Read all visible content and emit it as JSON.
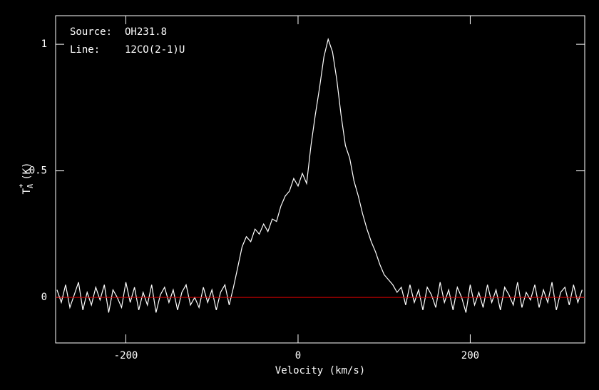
{
  "chart_data": {
    "type": "line",
    "annotations": {
      "source_label": "Source:",
      "source": "OH231.8",
      "line_label": "Line:",
      "line": "12CO(2-1)U"
    },
    "xlabel": "Velocity (km/s)",
    "ylabel": {
      "main": "T",
      "superscript": "*",
      "subscript": "A",
      "unit": "(K)"
    },
    "xlim": [
      -281.6,
      333
    ],
    "ylim": [
      -0.18,
      1.113
    ],
    "xticks": [
      -200,
      0,
      200
    ],
    "yticks": [
      0,
      0.5,
      1
    ],
    "baseline": 0,
    "baseline_color": "#e00000",
    "x": [
      -280,
      -275,
      -270,
      -265,
      -260,
      -255,
      -250,
      -245,
      -240,
      -235,
      -230,
      -225,
      -220,
      -215,
      -210,
      -205,
      -200,
      -195,
      -190,
      -185,
      -180,
      -175,
      -170,
      -165,
      -160,
      -155,
      -150,
      -145,
      -140,
      -135,
      -130,
      -125,
      -120,
      -115,
      -110,
      -105,
      -100,
      -95,
      -90,
      -85,
      -80,
      -75,
      -70,
      -65,
      -60,
      -55,
      -50,
      -45,
      -40,
      -35,
      -30,
      -25,
      -20,
      -15,
      -10,
      -5,
      0,
      5,
      10,
      15,
      20,
      25,
      30,
      35,
      40,
      45,
      50,
      55,
      60,
      65,
      70,
      75,
      80,
      85,
      90,
      95,
      100,
      105,
      110,
      115,
      120,
      125,
      130,
      135,
      140,
      145,
      150,
      155,
      160,
      165,
      170,
      175,
      180,
      185,
      190,
      195,
      200,
      205,
      210,
      215,
      220,
      225,
      230,
      235,
      240,
      245,
      250,
      255,
      260,
      265,
      270,
      275,
      280,
      285,
      290,
      295,
      300,
      305,
      310,
      315,
      320,
      325,
      330
    ],
    "series": [
      {
        "color": "#ffffff",
        "values": [
          0.03,
          -0.02,
          0.05,
          -0.04,
          0.01,
          0.06,
          -0.05,
          0.02,
          -0.03,
          0.04,
          -0.01,
          0.05,
          -0.06,
          0.03,
          0.0,
          -0.04,
          0.06,
          -0.02,
          0.04,
          -0.05,
          0.02,
          -0.03,
          0.05,
          -0.06,
          0.01,
          0.04,
          -0.02,
          0.03,
          -0.05,
          0.02,
          0.05,
          -0.03,
          0.0,
          -0.04,
          0.04,
          -0.02,
          0.03,
          -0.05,
          0.02,
          0.05,
          -0.03,
          0.04,
          0.12,
          0.2,
          0.24,
          0.22,
          0.27,
          0.25,
          0.29,
          0.26,
          0.31,
          0.3,
          0.36,
          0.4,
          0.42,
          0.47,
          0.44,
          0.49,
          0.45,
          0.6,
          0.72,
          0.83,
          0.95,
          1.02,
          0.97,
          0.86,
          0.72,
          0.6,
          0.55,
          0.46,
          0.4,
          0.33,
          0.27,
          0.22,
          0.18,
          0.13,
          0.09,
          0.07,
          0.05,
          0.02,
          0.04,
          -0.03,
          0.05,
          -0.02,
          0.03,
          -0.05,
          0.04,
          0.01,
          -0.04,
          0.06,
          -0.02,
          0.03,
          -0.05,
          0.04,
          0.0,
          -0.06,
          0.05,
          -0.03,
          0.02,
          -0.04,
          0.05,
          -0.02,
          0.03,
          -0.05,
          0.04,
          0.01,
          -0.03,
          0.06,
          -0.04,
          0.02,
          -0.01,
          0.05,
          -0.04,
          0.03,
          -0.02,
          0.06,
          -0.05,
          0.02,
          0.04,
          -0.03,
          0.05,
          -0.02,
          0.03
        ]
      }
    ]
  }
}
